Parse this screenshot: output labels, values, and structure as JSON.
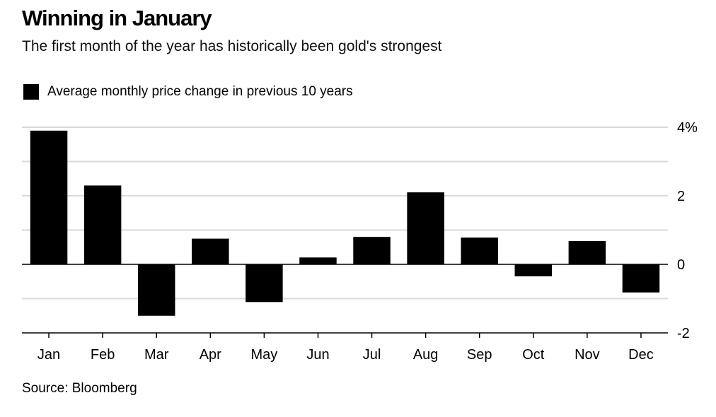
{
  "header": {
    "title": "Winning in January",
    "subtitle": "The first month of the year has historically been gold's strongest"
  },
  "legend": {
    "label": "Average monthly price change in previous 10 years",
    "color": "#000000"
  },
  "source": "Source: Bloomberg",
  "chart_data": {
    "type": "bar",
    "title": "Winning in January",
    "subtitle": "The first month of the year has historically been gold's strongest",
    "categories": [
      "Jan",
      "Feb",
      "Mar",
      "Apr",
      "May",
      "Jun",
      "Jul",
      "Aug",
      "Sep",
      "Oct",
      "Nov",
      "Dec"
    ],
    "series": [
      {
        "name": "Average monthly price change in previous 10 years",
        "values": [
          3.9,
          2.3,
          -1.5,
          0.75,
          -1.1,
          0.2,
          0.8,
          2.1,
          0.78,
          -0.35,
          0.68,
          -0.82
        ]
      }
    ],
    "ylim": [
      -2,
      4
    ],
    "yticks": [
      {
        "value": 4,
        "label": "4%"
      },
      {
        "value": 2,
        "label": "2"
      },
      {
        "value": 0,
        "label": "0"
      },
      {
        "value": -2,
        "label": "-2"
      }
    ],
    "gridlines": [
      4,
      3,
      2,
      1,
      -1
    ],
    "grid": true,
    "legend_position": "top-left",
    "y_axis_side": "right",
    "bar_color": "#000000",
    "grid_color": "#d9d9d9"
  }
}
